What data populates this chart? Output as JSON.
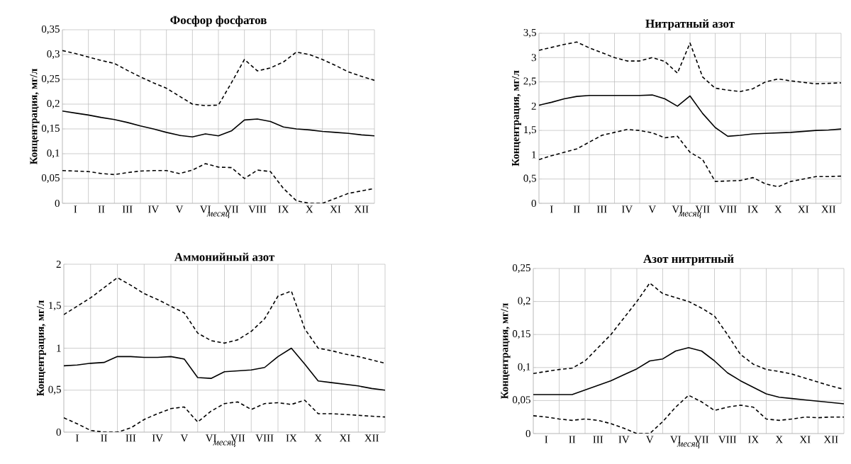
{
  "chart_data": [
    {
      "type": "line",
      "title": "Фосфор фосфатов",
      "xlabel": "месяц",
      "ylabel": "Концентрация, мг/л",
      "grid": true,
      "categories": [
        null,
        "I",
        null,
        "II",
        null,
        "III",
        null,
        "IV",
        null,
        "V",
        null,
        "VI",
        null,
        "VII",
        null,
        "VIII",
        null,
        "IX",
        null,
        "X",
        null,
        "XI",
        null,
        "XII",
        null
      ],
      "ylim": [
        0,
        0.35
      ],
      "yticks": [
        0,
        {
          "value": 0.05,
          "label": "0,05"
        },
        {
          "value": 0.1,
          "label": "0,1"
        },
        {
          "value": 0.15,
          "label": "0,15"
        },
        {
          "value": 0.2,
          "label": "0,2"
        },
        {
          "value": 0.25,
          "label": "0,25"
        },
        {
          "value": 0.3,
          "label": "0,3"
        },
        {
          "value": 0.35,
          "label": "0,35"
        }
      ],
      "series": [
        {
          "color": "#000000",
          "line_style": "solid",
          "values": [
            0.186,
            0.182,
            0.178,
            0.173,
            0.169,
            0.163,
            0.156,
            0.15,
            0.143,
            0.137,
            0.134,
            0.14,
            0.136,
            0.146,
            0.168,
            0.17,
            0.165,
            0.154,
            0.15,
            0.148,
            0.145,
            0.143,
            0.141,
            0.138,
            0.136
          ]
        },
        {
          "color": "#000000",
          "line_style": "dashed",
          "values": [
            0.308,
            0.302,
            0.295,
            0.288,
            0.282,
            0.268,
            0.255,
            0.243,
            0.232,
            0.216,
            0.2,
            0.197,
            0.198,
            0.243,
            0.29,
            0.267,
            0.273,
            0.285,
            0.305,
            0.3,
            0.29,
            0.278,
            0.265,
            0.256,
            0.248
          ]
        },
        {
          "color": "#000000",
          "line_style": "dashed",
          "values": [
            0.066,
            0.065,
            0.064,
            0.06,
            0.058,
            0.062,
            0.065,
            0.066,
            0.066,
            0.06,
            0.067,
            0.08,
            0.073,
            0.072,
            0.05,
            0.067,
            0.064,
            0.03,
            0.005,
            0,
            0,
            0.01,
            0.02,
            0.025,
            0.03
          ]
        }
      ]
    },
    {
      "type": "line",
      "title": "Нитратный азот",
      "xlabel": "месяц",
      "ylabel": "Концентрация, мг/л",
      "grid": true,
      "categories": [
        null,
        "I",
        null,
        "II",
        null,
        "III",
        null,
        "IV",
        null,
        "V",
        null,
        "VI",
        null,
        "VII",
        null,
        "VIII",
        null,
        "IX",
        null,
        "X",
        null,
        "XI",
        null,
        "XII",
        null
      ],
      "ylim": [
        0,
        3.5
      ],
      "yticks": [
        0,
        {
          "value": 0.5,
          "label": "0,5"
        },
        1,
        {
          "value": 1.5,
          "label": "1,5"
        },
        2,
        {
          "value": 2.5,
          "label": "2,5"
        },
        3,
        {
          "value": 3.5,
          "label": "3,5"
        }
      ],
      "series": [
        {
          "color": "#000000",
          "line_style": "solid",
          "values": [
            2.02,
            2.08,
            2.15,
            2.2,
            2.22,
            2.22,
            2.22,
            2.22,
            2.22,
            2.23,
            2.15,
            2.0,
            2.21,
            1.85,
            1.56,
            1.38,
            1.4,
            1.43,
            1.44,
            1.45,
            1.46,
            1.48,
            1.5,
            1.51,
            1.53
          ]
        },
        {
          "color": "#000000",
          "line_style": "dashed",
          "values": [
            3.15,
            3.21,
            3.27,
            3.32,
            3.2,
            3.1,
            3.0,
            2.93,
            2.93,
            3.0,
            2.92,
            2.68,
            3.3,
            2.6,
            2.37,
            2.33,
            2.3,
            2.36,
            2.5,
            2.56,
            2.52,
            2.49,
            2.46,
            2.47,
            2.48
          ]
        },
        {
          "color": "#000000",
          "line_style": "dashed",
          "values": [
            0.9,
            0.98,
            1.05,
            1.12,
            1.26,
            1.4,
            1.46,
            1.52,
            1.5,
            1.45,
            1.35,
            1.38,
            1.05,
            0.9,
            0.45,
            0.46,
            0.47,
            0.53,
            0.4,
            0.34,
            0.45,
            0.5,
            0.55,
            0.55,
            0.56
          ]
        }
      ]
    },
    {
      "type": "line",
      "title": "Аммонийный азот",
      "xlabel": "месяц",
      "ylabel": "Концентрация, мг/л",
      "grid": true,
      "categories": [
        null,
        "I",
        null,
        "II",
        null,
        "III",
        null,
        "IV",
        null,
        "V",
        null,
        "VI",
        null,
        "VII",
        null,
        "VIII",
        null,
        "IX",
        null,
        "X",
        null,
        "XI",
        null,
        "XII",
        null
      ],
      "ylim": [
        0,
        2
      ],
      "yticks": [
        0,
        {
          "value": 0.5,
          "label": "0,5"
        },
        1,
        {
          "value": 1.5,
          "label": "1,5"
        },
        2
      ],
      "series": [
        {
          "color": "#000000",
          "line_style": "solid",
          "values": [
            0.79,
            0.8,
            0.82,
            0.83,
            0.9,
            0.9,
            0.89,
            0.89,
            0.9,
            0.87,
            0.65,
            0.64,
            0.72,
            0.73,
            0.74,
            0.77,
            0.9,
            1.0,
            0.81,
            0.61,
            0.59,
            0.57,
            0.55,
            0.52,
            0.5
          ]
        },
        {
          "color": "#000000",
          "line_style": "dashed",
          "values": [
            1.4,
            1.5,
            1.6,
            1.72,
            1.84,
            1.75,
            1.65,
            1.58,
            1.5,
            1.42,
            1.18,
            1.09,
            1.06,
            1.1,
            1.2,
            1.35,
            1.62,
            1.68,
            1.23,
            1.0,
            0.97,
            0.93,
            0.9,
            0.86,
            0.82
          ]
        },
        {
          "color": "#000000",
          "line_style": "dashed",
          "values": [
            0.17,
            0.1,
            0.02,
            0,
            0,
            0.05,
            0.15,
            0.22,
            0.28,
            0.3,
            0.12,
            0.25,
            0.34,
            0.36,
            0.27,
            0.34,
            0.35,
            0.33,
            0.38,
            0.22,
            0.22,
            0.21,
            0.2,
            0.19,
            0.18
          ]
        }
      ]
    },
    {
      "type": "line",
      "title": "Азот нитритный",
      "xlabel": "месяц",
      "ylabel": "Концентрация, мг/л",
      "grid": true,
      "categories": [
        null,
        "I",
        null,
        "II",
        null,
        "III",
        null,
        "IV",
        null,
        "V",
        null,
        "VI",
        null,
        "VII",
        null,
        "VIII",
        null,
        "IX",
        null,
        "X",
        null,
        "XI",
        null,
        "XII",
        null
      ],
      "ylim": [
        0,
        0.25
      ],
      "yticks": [
        0,
        {
          "value": 0.05,
          "label": "0,05"
        },
        {
          "value": 0.1,
          "label": "0,1"
        },
        {
          "value": 0.15,
          "label": "0,15"
        },
        {
          "value": 0.2,
          "label": "0,2"
        },
        {
          "value": 0.25,
          "label": "0,25"
        }
      ],
      "series": [
        {
          "color": "#000000",
          "line_style": "solid",
          "values": [
            0.059,
            0.059,
            0.059,
            0.059,
            0.066,
            0.073,
            0.08,
            0.089,
            0.098,
            0.11,
            0.113,
            0.125,
            0.13,
            0.125,
            0.11,
            0.092,
            0.08,
            0.07,
            0.06,
            0.055,
            0.053,
            0.051,
            0.049,
            0.047,
            0.045
          ]
        },
        {
          "color": "#000000",
          "line_style": "dashed",
          "values": [
            0.091,
            0.094,
            0.097,
            0.099,
            0.11,
            0.13,
            0.15,
            0.175,
            0.2,
            0.228,
            0.212,
            0.206,
            0.2,
            0.19,
            0.178,
            0.15,
            0.12,
            0.105,
            0.097,
            0.094,
            0.09,
            0.084,
            0.078,
            0.072,
            0.067
          ]
        },
        {
          "color": "#000000",
          "line_style": "dashed",
          "values": [
            0.027,
            0.025,
            0.022,
            0.02,
            0.022,
            0.02,
            0.015,
            0.008,
            0,
            0,
            0.018,
            0.04,
            0.058,
            0.048,
            0.035,
            0.04,
            0.043,
            0.04,
            0.022,
            0.02,
            0.022,
            0.025,
            0.024,
            0.025,
            0.025
          ]
        }
      ]
    }
  ]
}
